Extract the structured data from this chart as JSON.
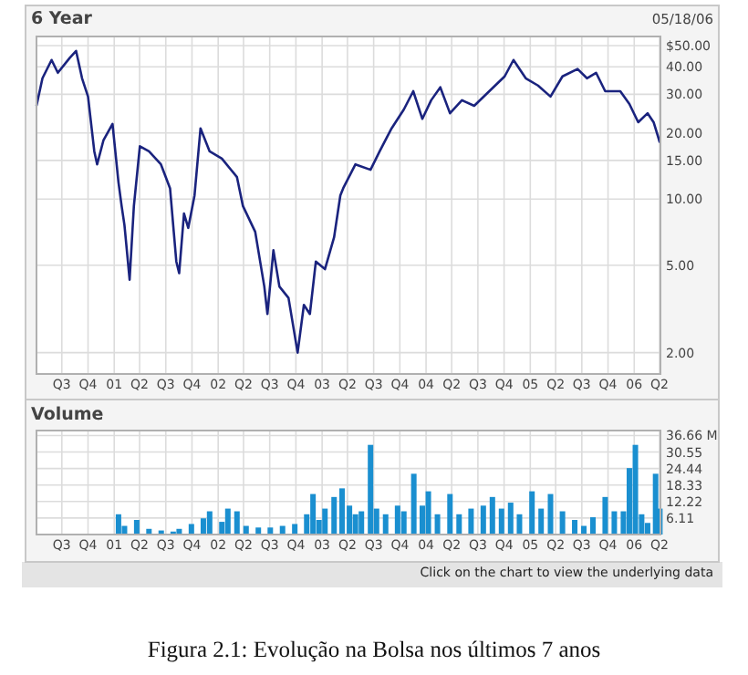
{
  "chart_data": [
    {
      "type": "line",
      "title": "6 Year",
      "annotations": [
        "05/18/06"
      ],
      "log": "y",
      "grid": true,
      "xlim": [
        "2000-05-18",
        "2006-05-18"
      ],
      "xticks": [
        {
          "value": "2000-08-15",
          "label": "Q3"
        },
        {
          "value": "2000-11-15",
          "label": "Q4"
        },
        {
          "value": "2001-02-15",
          "label": "01"
        },
        {
          "value": "2001-05-15",
          "label": "Q2"
        },
        {
          "value": "2001-08-15",
          "label": "Q3"
        },
        {
          "value": "2001-11-15",
          "label": "Q4"
        },
        {
          "value": "2002-02-15",
          "label": "02"
        },
        {
          "value": "2002-05-15",
          "label": "Q2"
        },
        {
          "value": "2002-08-15",
          "label": "Q3"
        },
        {
          "value": "2002-11-15",
          "label": "Q4"
        },
        {
          "value": "2003-02-15",
          "label": "03"
        },
        {
          "value": "2003-05-15",
          "label": "Q2"
        },
        {
          "value": "2003-08-15",
          "label": "Q3"
        },
        {
          "value": "2003-11-15",
          "label": "Q4"
        },
        {
          "value": "2004-02-15",
          "label": "04"
        },
        {
          "value": "2004-05-15",
          "label": "Q2"
        },
        {
          "value": "2004-08-15",
          "label": "Q3"
        },
        {
          "value": "2004-11-15",
          "label": "Q4"
        },
        {
          "value": "2005-02-15",
          "label": "05"
        },
        {
          "value": "2005-05-15",
          "label": "Q2"
        },
        {
          "value": "2005-08-15",
          "label": "Q3"
        },
        {
          "value": "2005-11-15",
          "label": "Q4"
        },
        {
          "value": "2006-02-15",
          "label": "06"
        },
        {
          "value": "2006-05-15",
          "label": "Q2"
        }
      ],
      "ylim": [
        1.6,
        55
      ],
      "yticks": [
        {
          "value": 2,
          "label": "2.00"
        },
        {
          "value": 5,
          "label": "5.00"
        },
        {
          "value": 10,
          "label": "10.00"
        },
        {
          "value": 15,
          "label": "15.00"
        },
        {
          "value": 20,
          "label": "20.00"
        },
        {
          "value": 30,
          "label": "30.00"
        },
        {
          "value": 40,
          "label": "40.00"
        },
        {
          "value": 50,
          "label": "$50.00"
        }
      ],
      "x": [
        "2000-05-18",
        "2000-06-08",
        "2000-07-10",
        "2000-08-01",
        "2000-09-12",
        "2000-10-04",
        "2000-10-25",
        "2000-11-15",
        "2000-12-07",
        "2000-12-17",
        "2001-01-08",
        "2001-02-09",
        "2001-03-02",
        "2001-03-13",
        "2001-03-23",
        "2001-04-10",
        "2001-04-25",
        "2001-05-16",
        "2001-06-17",
        "2001-07-29",
        "2001-08-30",
        "2001-09-21",
        "2001-10-01",
        "2001-10-18",
        "2001-11-02",
        "2001-11-24",
        "2001-12-15",
        "2002-01-16",
        "2002-02-28",
        "2002-04-22",
        "2002-05-13",
        "2002-06-25",
        "2002-07-27",
        "2002-08-07",
        "2002-08-28",
        "2002-09-18",
        "2002-10-20",
        "2002-11-21",
        "2002-12-13",
        "2003-01-03",
        "2003-01-24",
        "2003-02-25",
        "2003-03-29",
        "2003-04-20",
        "2003-04-30",
        "2003-06-12",
        "2003-08-04",
        "2003-09-05",
        "2003-10-17",
        "2003-11-29",
        "2004-01-01",
        "2004-02-02",
        "2004-03-04",
        "2004-04-05",
        "2004-05-09",
        "2004-06-20",
        "2004-08-02",
        "2004-09-24",
        "2004-11-17",
        "2004-12-18",
        "2005-01-30",
        "2005-03-14",
        "2005-04-27",
        "2005-06-08",
        "2005-07-31",
        "2005-09-02",
        "2005-10-04",
        "2005-11-05",
        "2005-12-28",
        "2006-01-29",
        "2006-03-01",
        "2006-04-03",
        "2006-04-24",
        "2006-05-16"
      ],
      "series": [
        {
          "color": "#1a237e",
          "values": [
            26.6,
            35.5,
            43,
            37.6,
            44,
            47.3,
            35.5,
            29.3,
            16.5,
            14.4,
            18.5,
            22,
            11.9,
            9.3,
            7.6,
            4.3,
            9.3,
            17.4,
            16.5,
            14.4,
            11.2,
            5.2,
            4.6,
            8.6,
            7.4,
            10.4,
            21,
            16.5,
            15.3,
            12.6,
            9.3,
            7.1,
            4,
            3,
            5.85,
            4,
            3.55,
            2,
            3.3,
            3,
            5.2,
            4.8,
            6.7,
            10.4,
            11.2,
            14.4,
            13.6,
            16.5,
            21,
            25.6,
            31,
            23.2,
            28.2,
            32.3,
            24.6,
            28.2,
            26.6,
            31,
            36.2,
            43,
            35.5,
            32.9,
            29.3,
            36.2,
            39.1,
            35.5,
            37.6,
            31,
            31,
            27.1,
            22.4,
            24.6,
            22.4,
            18.1
          ]
        }
      ]
    },
    {
      "type": "bar",
      "title": "Volume",
      "annotations": [
        "Click on the chart to view the underlying data",
        "Figura 2.1: Evolução na Bolsa nos últimos 7 anos"
      ],
      "grid": true,
      "xlim": [
        "2000-05-18",
        "2006-05-18"
      ],
      "xticks": [
        {
          "value": "2000-08-15",
          "label": "Q3"
        },
        {
          "value": "2000-11-15",
          "label": "Q4"
        },
        {
          "value": "2001-02-15",
          "label": "01"
        },
        {
          "value": "2001-05-15",
          "label": "Q2"
        },
        {
          "value": "2001-08-15",
          "label": "Q3"
        },
        {
          "value": "2001-11-15",
          "label": "Q4"
        },
        {
          "value": "2002-02-15",
          "label": "02"
        },
        {
          "value": "2002-05-15",
          "label": "Q2"
        },
        {
          "value": "2002-08-15",
          "label": "Q3"
        },
        {
          "value": "2002-11-15",
          "label": "Q4"
        },
        {
          "value": "2003-02-15",
          "label": "03"
        },
        {
          "value": "2003-05-15",
          "label": "Q2"
        },
        {
          "value": "2003-08-15",
          "label": "Q3"
        },
        {
          "value": "2003-11-15",
          "label": "Q4"
        },
        {
          "value": "2004-02-15",
          "label": "04"
        },
        {
          "value": "2004-05-15",
          "label": "Q2"
        },
        {
          "value": "2004-08-15",
          "label": "Q3"
        },
        {
          "value": "2004-11-15",
          "label": "Q4"
        },
        {
          "value": "2005-02-15",
          "label": "05"
        },
        {
          "value": "2005-05-15",
          "label": "Q2"
        },
        {
          "value": "2005-08-15",
          "label": "Q3"
        },
        {
          "value": "2005-11-15",
          "label": "Q4"
        },
        {
          "value": "2006-02-15",
          "label": "06"
        },
        {
          "value": "2006-05-15",
          "label": "Q2"
        }
      ],
      "ylim": [
        0,
        38.5
      ],
      "yticks": [
        6.11,
        12.22,
        18.33,
        24.44,
        30.55,
        {
          "value": 36.66,
          "label": "36.66 M"
        }
      ],
      "x": [
        "2001-01-18",
        "2001-03-02",
        "2001-03-23",
        "2001-05-05",
        "2001-06-17",
        "2001-07-30",
        "2001-09-10",
        "2001-10-01",
        "2001-11-13",
        "2001-12-25",
        "2002-01-16",
        "2002-02-28",
        "2002-03-21",
        "2002-04-22",
        "2002-05-24",
        "2002-07-06",
        "2002-08-17",
        "2002-09-29",
        "2002-11-11",
        "2002-12-23",
        "2003-01-14",
        "2003-02-04",
        "2003-02-25",
        "2003-03-29",
        "2003-04-26",
        "2003-05-22",
        "2003-06-12",
        "2003-07-03",
        "2003-08-04",
        "2003-08-25",
        "2003-09-26",
        "2003-11-07",
        "2003-11-29",
        "2004-01-03",
        "2004-02-02",
        "2004-02-23",
        "2004-03-26",
        "2004-05-09",
        "2004-06-10",
        "2004-07-22",
        "2004-09-03",
        "2004-10-05",
        "2004-11-06",
        "2004-12-08",
        "2005-01-08",
        "2005-02-21",
        "2005-03-25",
        "2005-04-27",
        "2005-06-08",
        "2005-07-21",
        "2005-08-22",
        "2005-09-23",
        "2005-11-05",
        "2005-12-07",
        "2006-01-08",
        "2006-01-29",
        "2006-02-19",
        "2006-03-13",
        "2006-04-03",
        "2006-05-01",
        "2006-05-16"
      ],
      "series": [
        {
          "color": "#1a8fd0",
          "values": [
            0.3,
            7.5,
            3.2,
            5.4,
            2.1,
            1.5,
            1.1,
            2.1,
            3.9,
            6,
            8.6,
            4.7,
            9.6,
            8.6,
            3.2,
            2.6,
            2.6,
            3.2,
            3.9,
            7.5,
            15,
            5.4,
            9.6,
            13.9,
            17.1,
            10.7,
            7.5,
            8.6,
            33.2,
            9.6,
            7.5,
            10.7,
            8.6,
            22.5,
            10.7,
            16,
            7.5,
            15,
            7.5,
            9.6,
            10.7,
            13.9,
            9.6,
            11.8,
            7.5,
            16,
            9.6,
            15,
            8.6,
            5.4,
            3.2,
            6.4,
            13.9,
            8.6,
            8.6,
            24.6,
            33.2,
            7.5,
            4.3,
            22.5,
            9.6
          ]
        }
      ]
    }
  ]
}
